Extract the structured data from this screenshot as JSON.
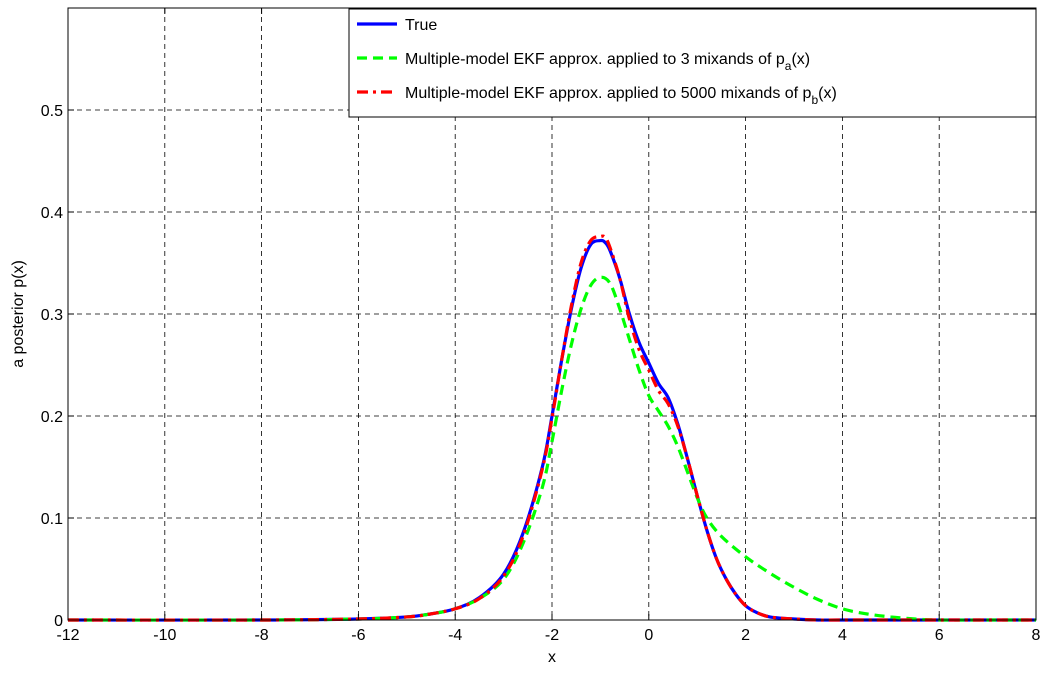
{
  "chart_data": {
    "type": "line",
    "title": "",
    "xlabel": "x",
    "ylabel": "a posterior p(x)",
    "xlim": [
      -12,
      8
    ],
    "ylim": [
      0,
      0.6
    ],
    "xticks": [
      -12,
      -10,
      -8,
      -6,
      -4,
      -2,
      0,
      2,
      4,
      6,
      8
    ],
    "xtick_labels": [
      "-12",
      "-10",
      "-8",
      "-6",
      "-4",
      "-2",
      "0",
      "2",
      "4",
      "6",
      "8"
    ],
    "yticks": [
      0,
      0.1,
      0.2,
      0.3,
      0.4,
      0.5
    ],
    "ytick_labels": [
      "0",
      "0.1",
      "0.2",
      "0.3",
      "0.4",
      "0.5"
    ],
    "grid": true,
    "legend_position": "top-right",
    "series": [
      {
        "name": "True",
        "color": "#0000ff",
        "style": "solid",
        "x": [
          -12,
          -8,
          -6,
          -5,
          -4.5,
          -4,
          -3.5,
          -3,
          -2.6,
          -2.2,
          -2,
          -1.8,
          -1.6,
          -1.4,
          -1.2,
          -1,
          -0.9,
          -0.8,
          -0.6,
          -0.4,
          -0.2,
          0,
          0.2,
          0.4,
          0.6,
          0.8,
          1,
          1.2,
          1.4,
          1.6,
          1.8,
          2,
          2.2,
          2.5,
          3,
          3.5,
          4,
          6,
          8
        ],
        "y": [
          0,
          0,
          0.001,
          0.003,
          0.006,
          0.011,
          0.022,
          0.045,
          0.085,
          0.15,
          0.2,
          0.255,
          0.305,
          0.345,
          0.368,
          0.372,
          0.37,
          0.362,
          0.335,
          0.3,
          0.272,
          0.252,
          0.232,
          0.218,
          0.192,
          0.158,
          0.122,
          0.088,
          0.06,
          0.04,
          0.025,
          0.014,
          0.008,
          0.003,
          0.001,
          0,
          0,
          0,
          0
        ]
      },
      {
        "name": "Multiple-model EKF approx. applied to 3 mixands of p_a(x)",
        "color": "#00ff00",
        "style": "dashed",
        "x": [
          -12,
          -8,
          -6,
          -5,
          -4.5,
          -4,
          -3.5,
          -3,
          -2.6,
          -2.2,
          -2,
          -1.8,
          -1.6,
          -1.4,
          -1.2,
          -1,
          -0.8,
          -0.6,
          -0.4,
          -0.2,
          0,
          0.2,
          0.4,
          0.6,
          0.8,
          1,
          1.2,
          1.5,
          2,
          2.5,
          3,
          3.5,
          4,
          4.5,
          5,
          5.5,
          6,
          7,
          8
        ],
        "y": [
          0,
          0,
          0.001,
          0.003,
          0.006,
          0.011,
          0.021,
          0.04,
          0.075,
          0.13,
          0.175,
          0.225,
          0.27,
          0.305,
          0.328,
          0.336,
          0.33,
          0.305,
          0.275,
          0.245,
          0.22,
          0.205,
          0.19,
          0.17,
          0.145,
          0.12,
          0.1,
          0.082,
          0.062,
          0.046,
          0.032,
          0.02,
          0.011,
          0.006,
          0.003,
          0.001,
          0,
          0,
          0
        ]
      },
      {
        "name": "Multiple-model EKF approx. applied to 5000 mixands of p_b(x)",
        "color": "#ff0000",
        "style": "dashdot",
        "x": [
          -12,
          -8,
          -6,
          -5,
          -4.5,
          -4,
          -3.5,
          -3,
          -2.6,
          -2.2,
          -2,
          -1.8,
          -1.6,
          -1.4,
          -1.2,
          -1,
          -0.9,
          -0.8,
          -0.6,
          -0.4,
          -0.2,
          0,
          0.2,
          0.4,
          0.6,
          0.8,
          1,
          1.2,
          1.4,
          1.6,
          1.8,
          2,
          2.2,
          2.5,
          3,
          3.5,
          4,
          6,
          8
        ],
        "y": [
          0,
          0,
          0.001,
          0.003,
          0.006,
          0.011,
          0.021,
          0.043,
          0.082,
          0.148,
          0.198,
          0.255,
          0.308,
          0.35,
          0.372,
          0.376,
          0.375,
          0.365,
          0.335,
          0.295,
          0.265,
          0.245,
          0.225,
          0.212,
          0.19,
          0.158,
          0.122,
          0.088,
          0.06,
          0.04,
          0.025,
          0.014,
          0.008,
          0.003,
          0.001,
          0,
          0,
          0,
          0
        ]
      }
    ]
  }
}
